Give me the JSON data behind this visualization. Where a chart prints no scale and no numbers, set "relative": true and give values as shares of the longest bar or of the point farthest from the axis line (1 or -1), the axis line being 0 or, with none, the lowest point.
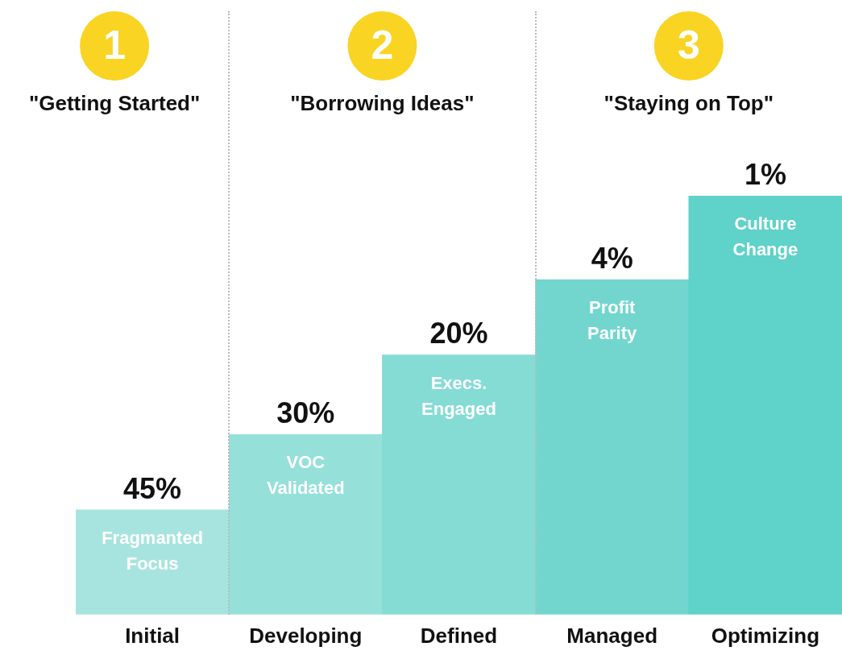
{
  "chart_data": {
    "type": "bar",
    "relative": true,
    "categories": [
      "Initial",
      "Developing",
      "Defined",
      "Managed",
      "Optimizing"
    ],
    "values": [
      0.25,
      0.43,
      0.62,
      0.8,
      1
    ],
    "colors": [
      "#a8e4df",
      "#96e0da",
      "#84dcd5",
      "#72d6cf",
      "#5fd2c9"
    ],
    "annotations": [
      "1",
      "\"Getting Started\"",
      "2",
      "\"Borrowing Ideas\"",
      "3",
      "\"Staying on Top\"",
      "Fragmanted Focus",
      "VOC Validated",
      "Execs. Engaged",
      "Profit Parity",
      "Culture Change",
      {
        "text": "45%",
        "x": "Initial",
        "y": 0.25
      },
      {
        "text": "30%",
        "x": "Developing",
        "y": 0.43
      },
      {
        "text": "20%",
        "x": "Defined",
        "y": 0.62
      },
      {
        "text": "4%",
        "x": "Managed",
        "y": 0.8
      },
      {
        "text": "1%",
        "x": "Optimizing",
        "y": 1
      }
    ],
    "grid": false,
    "legend": false
  }
}
